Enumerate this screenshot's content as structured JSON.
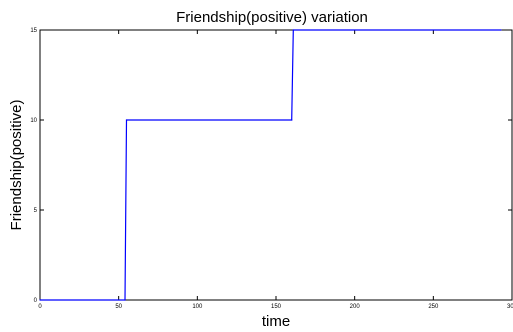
{
  "chart_data": {
    "type": "line",
    "title": "Friendship(positive) variation",
    "xlabel": "time",
    "ylabel": "Friendship(positive)",
    "xlim": [
      0,
      300
    ],
    "ylim": [
      0,
      15
    ],
    "xticks": [
      0,
      50,
      100,
      150,
      200,
      250,
      300
    ],
    "yticks": [
      0,
      5,
      10,
      15
    ],
    "grid": false,
    "series": [
      {
        "color": "#0000ff",
        "x": [
          0,
          54,
          55,
          160,
          161,
          293
        ],
        "y": [
          0,
          0,
          10,
          10,
          15,
          15
        ]
      }
    ]
  }
}
